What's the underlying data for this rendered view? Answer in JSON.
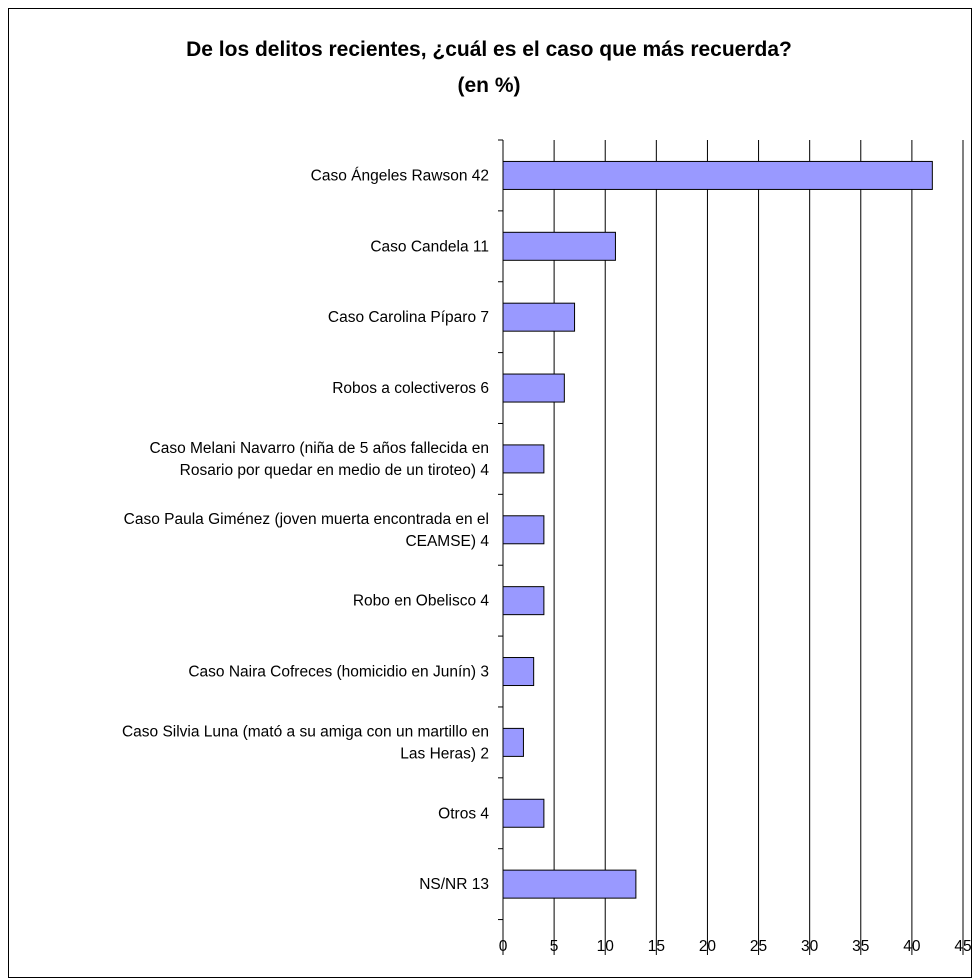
{
  "chart_data": {
    "type": "bar",
    "orientation": "horizontal",
    "title_lines": [
      "De los delitos recientes, ¿cuál es el caso que más recuerda?",
      "(en %)"
    ],
    "categories": [
      [
        "Caso Ángeles Rawson  42"
      ],
      [
        "Caso Candela  11"
      ],
      [
        "Caso Carolina Píparo  7"
      ],
      [
        "Robos a colectiveros  6"
      ],
      [
        "Caso Melani Navarro (niña de 5 años fallecida en",
        "Rosario por quedar en medio de un tiroteo)  4"
      ],
      [
        "Caso Paula Giménez (joven muerta encontrada en el",
        "CEAMSE)  4"
      ],
      [
        "Robo en Obelisco 4"
      ],
      [
        "Caso Naira Cofreces (homicidio en Junín)  3"
      ],
      [
        "Caso Silvia Luna (mató a su amiga con un martillo en",
        "Las Heras)  2"
      ],
      [
        "Otros  4"
      ],
      [
        "NS/NR  13"
      ]
    ],
    "values": [
      42,
      11,
      7,
      6,
      4,
      4,
      4,
      3,
      2,
      4,
      13
    ],
    "xlim": [
      0,
      45
    ],
    "x_ticks": [
      0,
      5,
      10,
      15,
      20,
      25,
      30,
      35,
      40,
      45
    ],
    "grid": "vertical",
    "legend": "none",
    "bar_color": "#9999ff",
    "bar_edge_color": "#000000"
  }
}
